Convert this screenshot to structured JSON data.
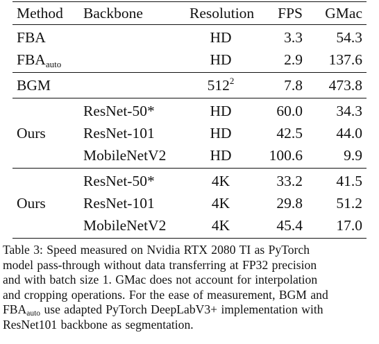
{
  "table": {
    "headers": {
      "method": "Method",
      "backbone": "Backbone",
      "resolution": "Resolution",
      "fps": "FPS",
      "gmac": "GMac"
    },
    "group_baselines": [
      {
        "method_base": "FBA",
        "method_sub": "",
        "backbone": "",
        "resolution_base": "HD",
        "resolution_sup": "",
        "fps": "3.3",
        "gmac": "54.3"
      },
      {
        "method_base": "FBA",
        "method_sub": "auto",
        "backbone": "",
        "resolution_base": "HD",
        "resolution_sup": "",
        "fps": "2.9",
        "gmac": "137.6"
      }
    ],
    "group_bgm": [
      {
        "method_base": "BGM",
        "method_sub": "",
        "backbone": "",
        "resolution_base": "512",
        "resolution_sup": "2",
        "fps": "7.8",
        "gmac": "473.8"
      }
    ],
    "group_ours_hd": {
      "method": "Ours",
      "rows": [
        {
          "backbone": "ResNet-50*",
          "resolution": "HD",
          "fps": "60.0",
          "gmac": "34.3"
        },
        {
          "backbone": "ResNet-101",
          "resolution": "HD",
          "fps": "42.5",
          "gmac": "44.0"
        },
        {
          "backbone": "MobileNetV2",
          "resolution": "HD",
          "fps": "100.6",
          "gmac": "9.9"
        }
      ]
    },
    "group_ours_4k": {
      "method": "Ours",
      "rows": [
        {
          "backbone": "ResNet-50*",
          "resolution": "4K",
          "fps": "33.2",
          "gmac": "41.5"
        },
        {
          "backbone": "ResNet-101",
          "resolution": "4K",
          "fps": "29.8",
          "gmac": "51.2"
        },
        {
          "backbone": "MobileNetV2",
          "resolution": "4K",
          "fps": "45.4",
          "gmac": "17.0"
        }
      ]
    }
  },
  "caption": {
    "line1": "Table 3:  Speed measured on Nvidia RTX 2080 TI as PyTorch",
    "line2": "model pass-through without data transferring at FP32 precision",
    "line3": "and with batch size 1.  GMac does not account for interpolation",
    "line4": "and cropping operations. For the ease of measurement, BGM and",
    "line5_base": "FBA",
    "line5_sub": "auto",
    "line5_rest": " use adapted PyTorch DeepLabV3+ implementation with",
    "line6": "ResNet101 backbone as segmentation."
  }
}
